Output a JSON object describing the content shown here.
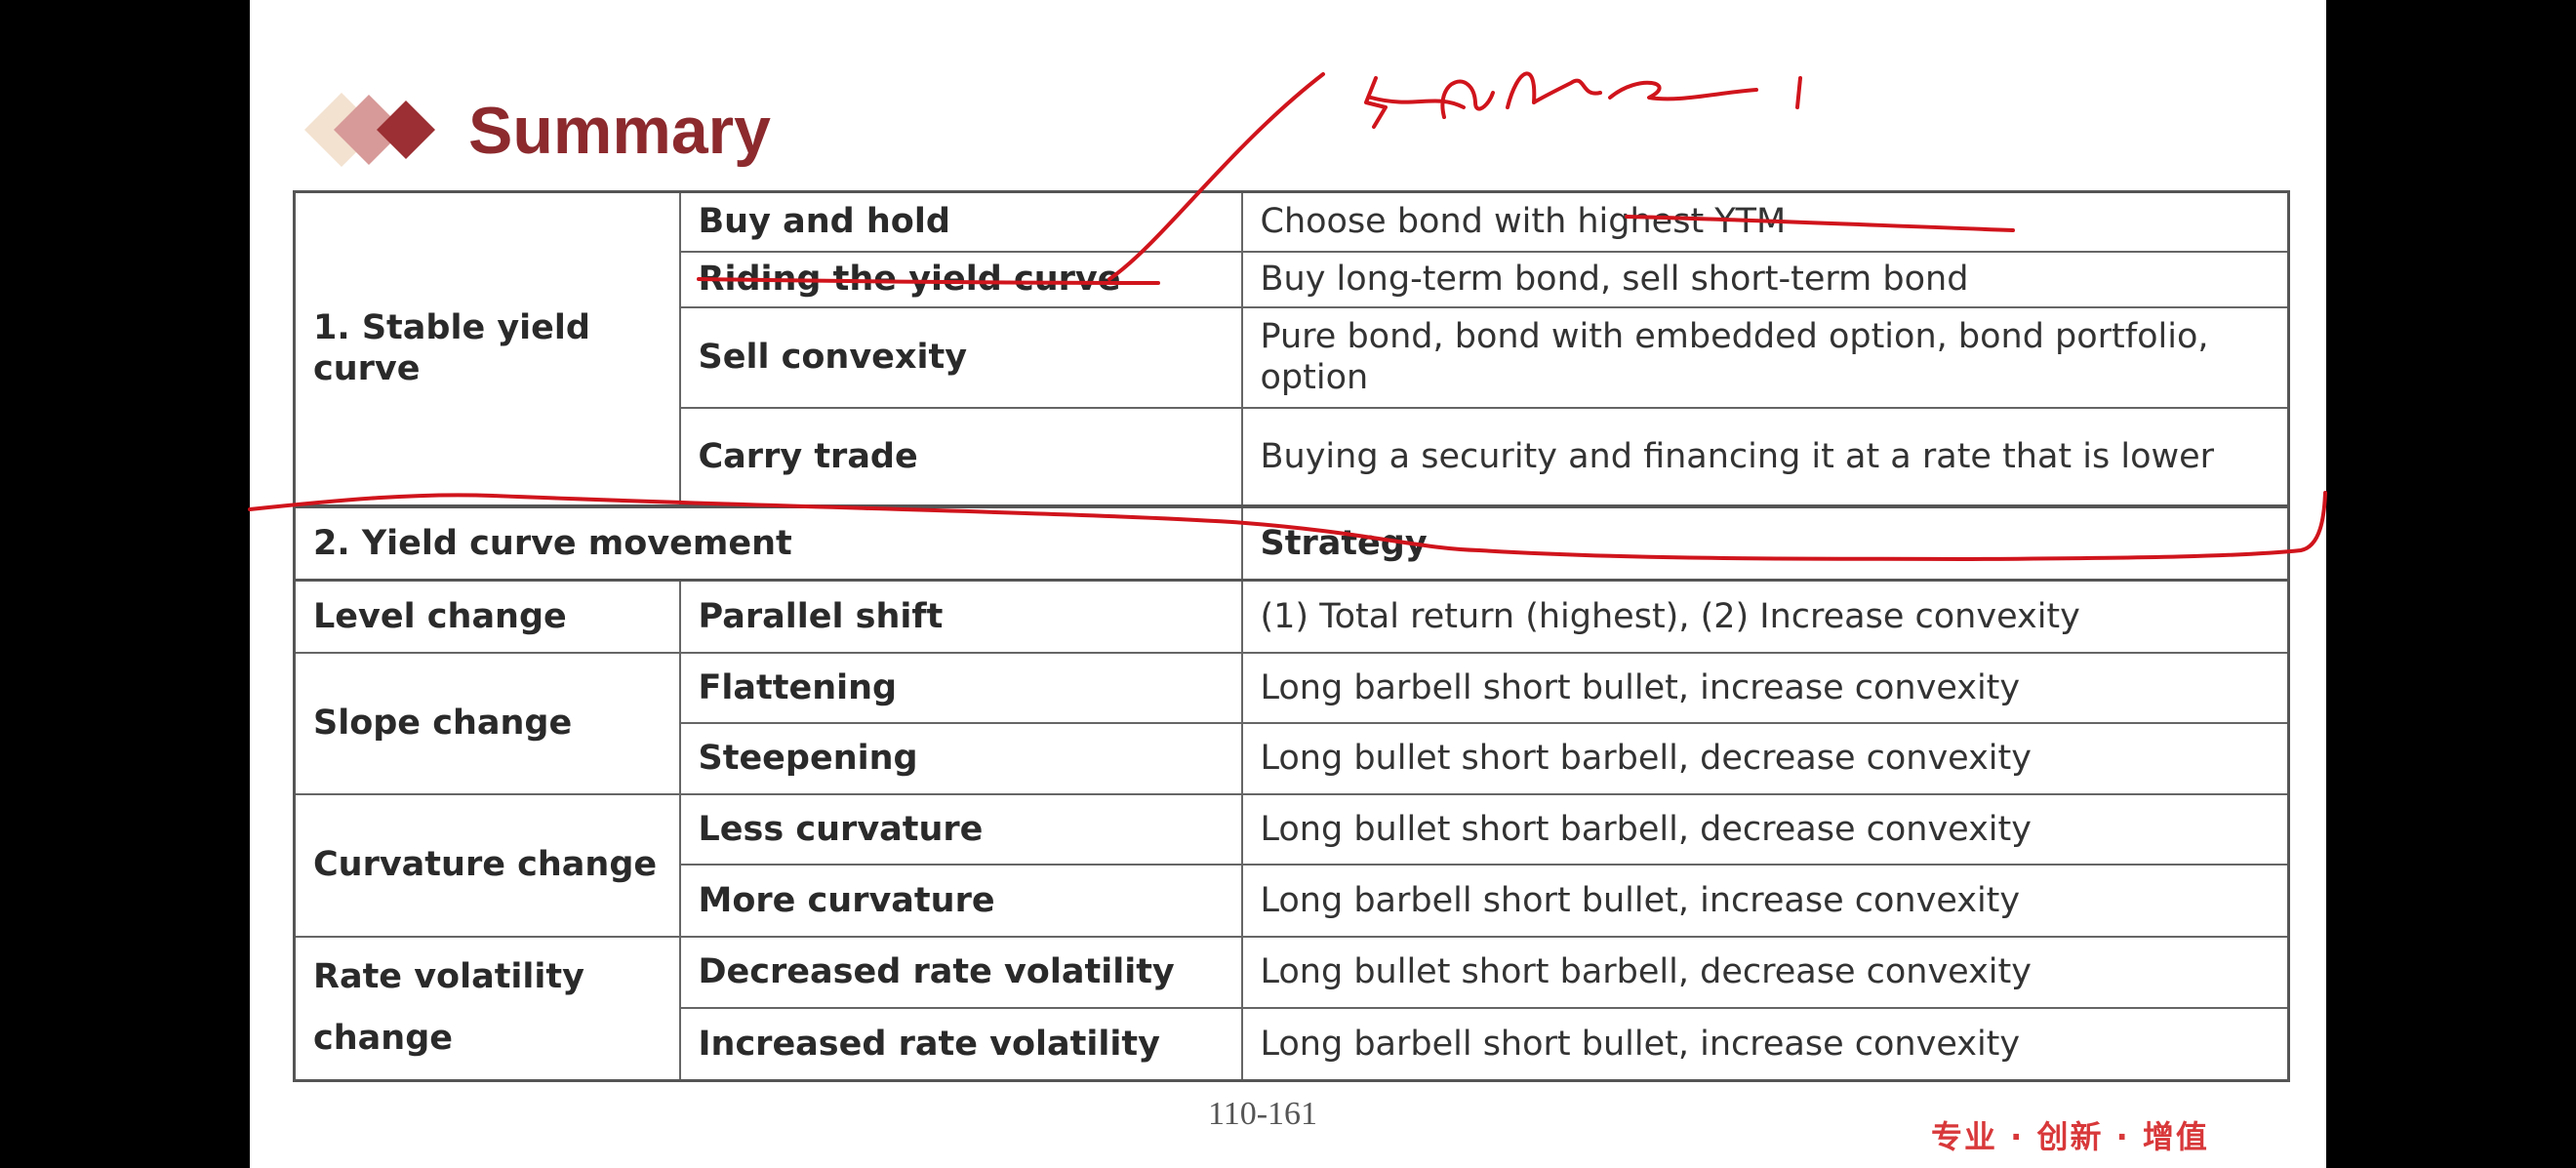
{
  "title": "Summary",
  "table": {
    "stable": {
      "label": "1. Stable yield curve",
      "rows": [
        {
          "strategy": "Buy and hold",
          "description": "Choose bond with highest YTM"
        },
        {
          "strategy": "Riding the yield curve",
          "description": "Buy long-term bond, sell short-term bond"
        },
        {
          "strategy": "Sell convexity",
          "description": "Pure bond, bond with embedded option, bond portfolio, option"
        },
        {
          "strategy": "Carry trade",
          "description": "Buying a security and financing it at a rate that is lower"
        }
      ]
    },
    "header": {
      "movement": "2. Yield curve movement",
      "strategy": "Strategy"
    },
    "movements": [
      {
        "group": "Level change",
        "type": "Parallel shift",
        "strategy": "(1) Total return (highest), (2) Increase convexity"
      },
      {
        "group": "Slope change",
        "type": "Flattening",
        "strategy": "Long barbell short bullet, increase convexity"
      },
      {
        "type": "Steepening",
        "strategy": "Long bullet short barbell, decrease convexity"
      },
      {
        "group": "Curvature change",
        "type": "Less curvature",
        "strategy": "Long bullet short barbell, decrease convexity"
      },
      {
        "type": "More curvature",
        "strategy": "Long barbell short bullet, increase convexity"
      },
      {
        "group": "Rate volatility change",
        "type": "Decreased rate volatility",
        "strategy": "Long bullet short barbell, decrease convexity"
      },
      {
        "type": "Increased rate volatility",
        "strategy": "Long barbell short bullet, increase convexity"
      }
    ]
  },
  "page_number": "110-161",
  "slogan": "专业 · 创新 · 增值",
  "colors": {
    "title": "#8c2a2e",
    "annotation": "#d0141c",
    "slogan": "#d8383a"
  }
}
